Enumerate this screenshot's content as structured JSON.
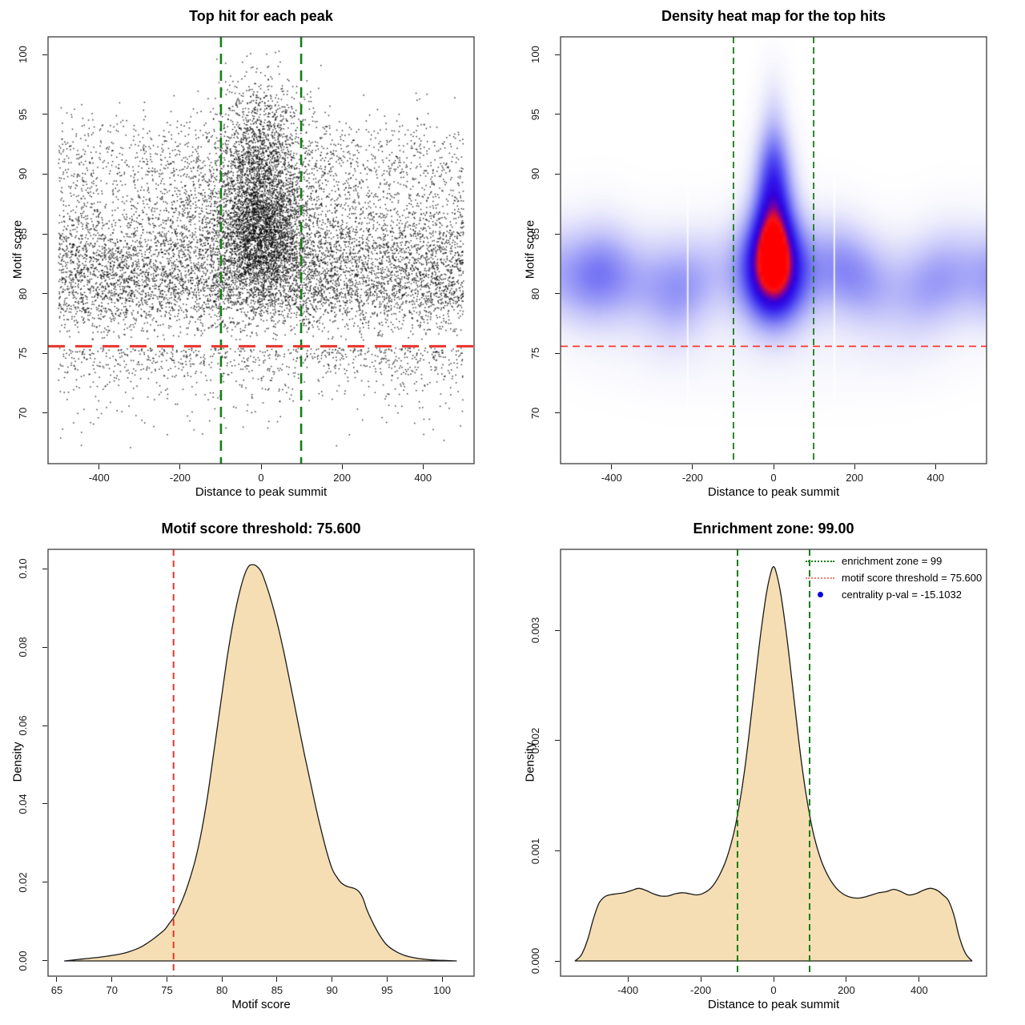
{
  "chart_data": [
    {
      "type": "scatter",
      "title": "Top hit for each peak",
      "xlabel": "Distance to peak summit",
      "ylabel": "Motif score",
      "x_range": [
        -526,
        526
      ],
      "y_range": [
        65.78,
        101.48
      ],
      "x_ticks": [
        {
          "v": -400,
          "label": "-400"
        },
        {
          "v": -200,
          "label": "-200"
        },
        {
          "v": 0,
          "label": "0"
        },
        {
          "v": 200,
          "label": "200"
        },
        {
          "v": 400,
          "label": "400"
        }
      ],
      "y_ticks": [
        {
          "v": 70,
          "label": "70"
        },
        {
          "v": 75,
          "label": "75"
        },
        {
          "v": 80,
          "label": "80"
        },
        {
          "v": 85,
          "label": "85"
        },
        {
          "v": 90,
          "label": "90"
        },
        {
          "v": 95,
          "label": "95"
        },
        {
          "v": 100,
          "label": "100"
        }
      ],
      "grid": false,
      "marker": {
        "size": 1.5,
        "color": "#000000",
        "opacity": 0.8
      },
      "points": {
        "seed": 42,
        "groups": [
          {
            "name": "background",
            "n": 8200,
            "x": {
              "dist": "uniform",
              "min": -500,
              "max": 500
            },
            "y": {
              "dist": "mixture",
              "clip_min": 76.05,
              "clip_max": 97.5,
              "components": [
                {
                  "w": 0.4,
                  "mean": 81.8,
                  "sd": 2.2
                },
                {
                  "w": 0.24,
                  "mean": 84.6,
                  "sd": 3.0
                },
                {
                  "w": 0.18,
                  "mean": 79.6,
                  "sd": 1.8
                },
                {
                  "w": 0.11,
                  "mean": 89.0,
                  "sd": 2.6
                },
                {
                  "w": 0.07,
                  "mean": 92.0,
                  "sd": 1.6
                }
              ]
            }
          },
          {
            "name": "central-cluster",
            "n": 3800,
            "x": {
              "dist": "normal",
              "mean": 0,
              "sd": 52,
              "clip_min": -480,
              "clip_max": 480
            },
            "y": {
              "dist": "mixture",
              "clip_min": 76.2,
              "clip_max": 100.4,
              "components": [
                {
                  "w": 0.52,
                  "mean": 84.6,
                  "sd": 2.7
                },
                {
                  "w": 0.26,
                  "mean": 87.6,
                  "sd": 3.0
                },
                {
                  "w": 0.13,
                  "mean": 91.2,
                  "sd": 2.4
                },
                {
                  "w": 0.09,
                  "mean": 95.2,
                  "sd": 2.3
                }
              ]
            }
          },
          {
            "name": "central-halo",
            "n": 1100,
            "x": {
              "dist": "normal",
              "mean": 0,
              "sd": 115,
              "clip_min": -480,
              "clip_max": 480
            },
            "y": {
              "dist": "mixture",
              "clip_min": 76.1,
              "clip_max": 99.5,
              "components": [
                {
                  "w": 0.55,
                  "mean": 85.0,
                  "sd": 3.4
                },
                {
                  "w": 0.3,
                  "mean": 88.5,
                  "sd": 3.2
                },
                {
                  "w": 0.15,
                  "mean": 92.0,
                  "sd": 2.6
                }
              ]
            }
          },
          {
            "name": "below-threshold",
            "n": 900,
            "x": {
              "dist": "uniform",
              "min": -500,
              "max": 500
            },
            "y": {
              "dist": "exp_below",
              "start": 75.45,
              "rate": 0.55,
              "clip_min": 67.0
            }
          }
        ]
      },
      "lines": [
        {
          "dir": "v",
          "value": -99,
          "color": "#177d17",
          "width": 2.6,
          "dash": [
            13,
            8
          ],
          "name": "enrichment-zone-left-line"
        },
        {
          "dir": "v",
          "value": 99,
          "color": "#177d17",
          "width": 2.6,
          "dash": [
            13,
            8
          ],
          "name": "enrichment-zone-right-line"
        },
        {
          "dir": "h",
          "value": 75.6,
          "color": "#e8342c",
          "width": 3,
          "dash": [
            21,
            13
          ],
          "name": "motif-score-threshold-line"
        }
      ]
    },
    {
      "type": "heatmap",
      "title": "Density heat map for the top hits",
      "xlabel": "Distance to peak summit",
      "ylabel": "Motif score",
      "x_range": [
        -526,
        526
      ],
      "y_range": [
        65.78,
        101.48
      ],
      "x_ticks": [
        {
          "v": -400,
          "label": "-400"
        },
        {
          "v": -200,
          "label": "-200"
        },
        {
          "v": 0,
          "label": "0"
        },
        {
          "v": 200,
          "label": "200"
        },
        {
          "v": 400,
          "label": "400"
        }
      ],
      "y_ticks": [
        {
          "v": 70,
          "label": "70"
        },
        {
          "v": 75,
          "label": "75"
        },
        {
          "v": 80,
          "label": "80"
        },
        {
          "v": 85,
          "label": "85"
        },
        {
          "v": 90,
          "label": "90"
        },
        {
          "v": 95,
          "label": "95"
        },
        {
          "v": 100,
          "label": "100"
        }
      ],
      "field": {
        "vmax": 2.1,
        "band": {
          "amp": 0.62,
          "y": 81.4,
          "sy": 2.9,
          "amp_waves": [
            {
              "k": 0.012,
              "a": 0.18,
              "ph": 0.7
            },
            {
              "k": 0.031,
              "a": 0.1,
              "ph": 2.3
            }
          ],
          "y_waves": [
            {
              "k": 0.01,
              "a": 0.8,
              "ph": 1.2
            },
            {
              "k": 0.023,
              "a": 0.4,
              "ph": 4.0
            }
          ]
        },
        "components": [
          {
            "cx": 0,
            "cy": 83.0,
            "sx": 47,
            "sy": 2.8,
            "amp": 1.3
          },
          {
            "cx": 0,
            "cy": 87.3,
            "sx": 36,
            "sy": 3.1,
            "amp": 1.1
          },
          {
            "cx": 0,
            "cy": 91.3,
            "sx": 29,
            "sy": 2.4,
            "amp": 0.52
          },
          {
            "cx": 0,
            "cy": 95.3,
            "sx": 25,
            "sy": 2.8,
            "amp": 0.22
          },
          {
            "cx": 0,
            "cy": 79.2,
            "sx": 55,
            "sy": 2.3,
            "amp": 0.5
          },
          {
            "cx": -240,
            "cy": 81.5,
            "sx": 60,
            "sy": 3.2,
            "amp": 0.18
          },
          {
            "cx": 230,
            "cy": 81.3,
            "sx": 70,
            "sy": 3.0,
            "amp": 0.15
          },
          {
            "cx": -430,
            "cy": 82.0,
            "sx": 60,
            "sy": 3.5,
            "amp": 0.12
          },
          {
            "cx": 420,
            "cy": 81.5,
            "sx": 60,
            "sy": 3.5,
            "amp": 0.12
          },
          {
            "cx": 0,
            "cy": 74.5,
            "sx": 200,
            "sy": 2.5,
            "amp": 0.07
          },
          {
            "cx": -300,
            "cy": 74.8,
            "sx": 120,
            "sy": 2.2,
            "amp": 0.05
          },
          {
            "cx": 300,
            "cy": 74.8,
            "sx": 120,
            "sy": 2.2,
            "amp": 0.05
          }
        ],
        "colormap": [
          [
            0.0,
            [
              255,
              255,
              255
            ]
          ],
          [
            0.08,
            [
              238,
              238,
              252
            ]
          ],
          [
            0.22,
            [
              198,
              198,
              250
            ]
          ],
          [
            0.38,
            [
              140,
              140,
              246
            ]
          ],
          [
            0.52,
            [
              85,
              80,
              242
            ]
          ],
          [
            0.65,
            [
              50,
              25,
              235
            ]
          ],
          [
            0.75,
            [
              48,
              0,
              220
            ]
          ],
          [
            0.83,
            [
              110,
              0,
              170
            ]
          ],
          [
            0.9,
            [
              200,
              10,
              70
            ]
          ],
          [
            0.95,
            [
              248,
              20,
              20
            ]
          ],
          [
            1.0,
            [
              255,
              0,
              0
            ]
          ]
        ],
        "white_lines": [
          -212,
          150
        ]
      },
      "lines": [
        {
          "dir": "v",
          "value": -99,
          "color": "#177d17",
          "width": 1.8,
          "dash": [
            8,
            5
          ],
          "name": "enrichment-zone-left-line"
        },
        {
          "dir": "v",
          "value": 99,
          "color": "#177d17",
          "width": 1.8,
          "dash": [
            8,
            5
          ],
          "name": "enrichment-zone-right-line"
        },
        {
          "dir": "h",
          "value": 75.6,
          "color": "#ff2d24",
          "width": 1.6,
          "dash": [
            9,
            6
          ],
          "name": "motif-score-threshold-line"
        }
      ]
    },
    {
      "type": "area",
      "title": "Motif score threshold: 75.600",
      "xlabel": "Motif score",
      "ylabel": "Density",
      "x_range": [
        64.2,
        102.9
      ],
      "y_range": [
        -0.00388,
        0.1049
      ],
      "x_ticks": [
        {
          "v": 65,
          "label": "65"
        },
        {
          "v": 70,
          "label": "70"
        },
        {
          "v": 75,
          "label": "75"
        },
        {
          "v": 80,
          "label": "80"
        },
        {
          "v": 85,
          "label": "85"
        },
        {
          "v": 90,
          "label": "90"
        },
        {
          "v": 95,
          "label": "95"
        },
        {
          "v": 100,
          "label": "100"
        }
      ],
      "y_ticks": [
        {
          "v": 0.0,
          "label": "0.00"
        },
        {
          "v": 0.02,
          "label": "0.02"
        },
        {
          "v": 0.04,
          "label": "0.04"
        },
        {
          "v": 0.06,
          "label": "0.06"
        },
        {
          "v": 0.08,
          "label": "0.08"
        },
        {
          "v": 0.1,
          "label": "0.10"
        }
      ],
      "fill_color": "#F5DEB3",
      "line_color": "#1a1a1a",
      "curve": {
        "x": [
          65.7,
          67,
          68,
          69,
          70,
          70.8,
          71.5,
          72.2,
          72.8,
          73.3,
          73.8,
          74.3,
          74.8,
          75.2,
          75.6,
          76,
          76.4,
          76.8,
          77.2,
          77.6,
          78,
          78.4,
          78.8,
          79.2,
          79.6,
          80,
          80.4,
          80.8,
          81.2,
          81.6,
          82,
          82.4,
          82.8,
          83.2,
          83.6,
          84,
          84.4,
          84.8,
          85.2,
          85.6,
          86,
          86.5,
          87,
          87.5,
          88,
          88.5,
          89,
          89.5,
          90,
          90.4,
          90.8,
          91.2,
          91.6,
          92,
          92.4,
          92.8,
          93.2,
          93.8,
          94.4,
          95,
          95.8,
          96.6,
          97.5,
          98.5,
          99.5,
          100.5,
          101.3
        ],
        "y": [
          0,
          0.0004,
          0.0007,
          0.001,
          0.0014,
          0.0018,
          0.0023,
          0.003,
          0.0038,
          0.0047,
          0.0057,
          0.0068,
          0.008,
          0.0095,
          0.011,
          0.013,
          0.0155,
          0.0185,
          0.022,
          0.026,
          0.031,
          0.037,
          0.044,
          0.052,
          0.06,
          0.068,
          0.076,
          0.083,
          0.089,
          0.094,
          0.098,
          0.1005,
          0.101,
          0.1005,
          0.099,
          0.096,
          0.0925,
          0.0885,
          0.084,
          0.079,
          0.0735,
          0.0665,
          0.0595,
          0.0525,
          0.046,
          0.0395,
          0.0335,
          0.028,
          0.0235,
          0.0215,
          0.02,
          0.0192,
          0.0188,
          0.0185,
          0.0178,
          0.016,
          0.0128,
          0.0092,
          0.0062,
          0.004,
          0.0024,
          0.0014,
          0.0008,
          0.0004,
          0.0002,
          0.0001,
          0
        ]
      },
      "peak": {
        "x": 82.8,
        "y": 0.101
      },
      "lines": [
        {
          "dir": "v",
          "value": 75.6,
          "color": "#e8342c",
          "width": 2,
          "dash": [
            8,
            6
          ],
          "name": "motif-score-threshold-line"
        }
      ]
    },
    {
      "type": "area",
      "title": "Enrichment zone: 99.00",
      "xlabel": "Distance to peak summit",
      "ylabel": "Density",
      "x_range": [
        -585,
        585
      ],
      "y_range": [
        -0.000138,
        0.003738
      ],
      "x_ticks": [
        {
          "v": -400,
          "label": "-400"
        },
        {
          "v": -200,
          "label": "-200"
        },
        {
          "v": 0,
          "label": "0"
        },
        {
          "v": 200,
          "label": "200"
        },
        {
          "v": 400,
          "label": "400"
        }
      ],
      "y_ticks": [
        {
          "v": 0.0,
          "label": "0.000"
        },
        {
          "v": 0.001,
          "label": "0.001"
        },
        {
          "v": 0.002,
          "label": "0.002"
        },
        {
          "v": 0.003,
          "label": "0.003"
        }
      ],
      "fill_color": "#F5DEB3",
      "line_color": "#1a1a1a",
      "curve": {
        "x": [
          -545,
          -527,
          -510,
          -495,
          -480,
          -465,
          -450,
          -430,
          -410,
          -390,
          -370,
          -350,
          -330,
          -310,
          -290,
          -270,
          -250,
          -230,
          -210,
          -190,
          -170,
          -150,
          -130,
          -110,
          -95,
          -80,
          -65,
          -50,
          -35,
          -20,
          -8,
          0,
          8,
          20,
          35,
          50,
          65,
          80,
          95,
          110,
          130,
          150,
          170,
          190,
          210,
          230,
          250,
          270,
          290,
          310,
          330,
          350,
          370,
          390,
          410,
          430,
          450,
          465,
          480,
          495,
          510,
          527,
          545
        ],
        "y": [
          0,
          6e-05,
          0.0002,
          0.00038,
          0.00052,
          0.00058,
          0.0006,
          0.00061,
          0.00062,
          0.00064,
          0.00066,
          0.00064,
          0.00061,
          0.00059,
          0.00059,
          0.00061,
          0.00062,
          0.00061,
          0.0006,
          0.00062,
          0.00067,
          0.00077,
          0.00092,
          0.00115,
          0.0014,
          0.00172,
          0.00212,
          0.00256,
          0.00298,
          0.00333,
          0.00352,
          0.00358,
          0.00352,
          0.00333,
          0.00298,
          0.00256,
          0.00212,
          0.00172,
          0.0014,
          0.00115,
          0.00092,
          0.00077,
          0.00067,
          0.00061,
          0.00058,
          0.00057,
          0.00058,
          0.0006,
          0.00062,
          0.00063,
          0.00065,
          0.00063,
          0.0006,
          0.00061,
          0.00064,
          0.00066,
          0.00064,
          0.0006,
          0.00055,
          0.00042,
          0.00022,
          7e-05,
          0
        ]
      },
      "peak": {
        "x": 0,
        "y": 0.00358
      },
      "lines": [
        {
          "dir": "v",
          "value": -99,
          "color": "#177d17",
          "width": 2,
          "dash": [
            8,
            5
          ],
          "name": "enrichment-zone-left-line"
        },
        {
          "dir": "v",
          "value": 99,
          "color": "#177d17",
          "width": 2,
          "dash": [
            8,
            5
          ],
          "name": "enrichment-zone-right-line"
        }
      ],
      "legend": {
        "position": "top-right",
        "items": [
          {
            "symbol": "green-dotted-line",
            "label": "enrichment zone = 99",
            "color": "#177d17"
          },
          {
            "symbol": "red-dotted-line",
            "label": "motif score threshold = 75.600",
            "color": "#ef7f76"
          },
          {
            "symbol": "blue-dot",
            "label": "centrality p-val = -15.1032",
            "color": "#0000dd"
          }
        ]
      }
    }
  ]
}
